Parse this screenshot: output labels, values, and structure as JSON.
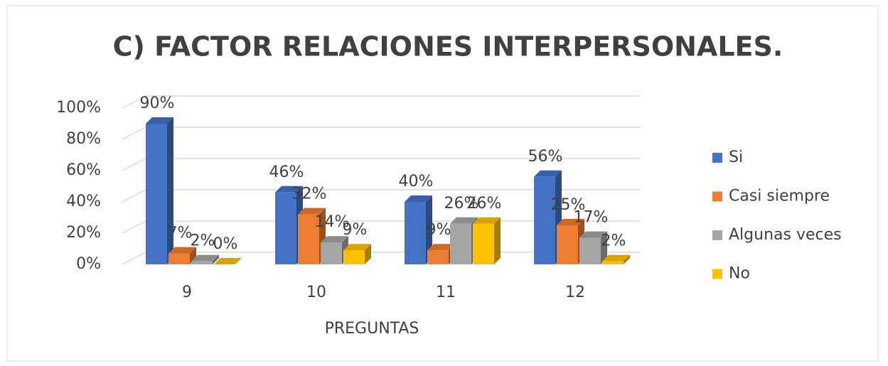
{
  "chart_data": {
    "type": "bar3d",
    "title": "C) FACTOR RELACIONES INTERPERSONALES.",
    "x_label": "PREGUNTAS",
    "categories": [
      "9",
      "10",
      "11",
      "12"
    ],
    "series": [
      {
        "name": "Si",
        "color": "#4472c4",
        "values": [
          90,
          46,
          40,
          56
        ],
        "value_labels": [
          "90%",
          "46%",
          "40%",
          "56%"
        ]
      },
      {
        "name": "Casi siempre",
        "color": "#ed7d31",
        "values": [
          7,
          32,
          9,
          25
        ],
        "value_labels": [
          "7%",
          "32%",
          "9%",
          "25%"
        ]
      },
      {
        "name": "Algunas veces",
        "color": "#a5a5a5",
        "values": [
          2,
          14,
          26,
          17
        ],
        "value_labels": [
          "2%",
          "14%",
          "26%",
          "17%"
        ]
      },
      {
        "name": "No",
        "color": "#ffc000",
        "values": [
          0,
          9,
          26,
          2
        ],
        "value_labels": [
          "0%",
          "9%",
          "26%",
          "2%"
        ]
      }
    ],
    "ylim": [
      0,
      100
    ],
    "yticks": [
      {
        "value": 0,
        "label": "0%"
      },
      {
        "value": 20,
        "label": "20%"
      },
      {
        "value": 40,
        "label": "40%"
      },
      {
        "value": 60,
        "label": "60%"
      },
      {
        "value": 80,
        "label": "80%"
      },
      {
        "value": 100,
        "label": "100%"
      }
    ],
    "grid": true,
    "legend": "right"
  }
}
